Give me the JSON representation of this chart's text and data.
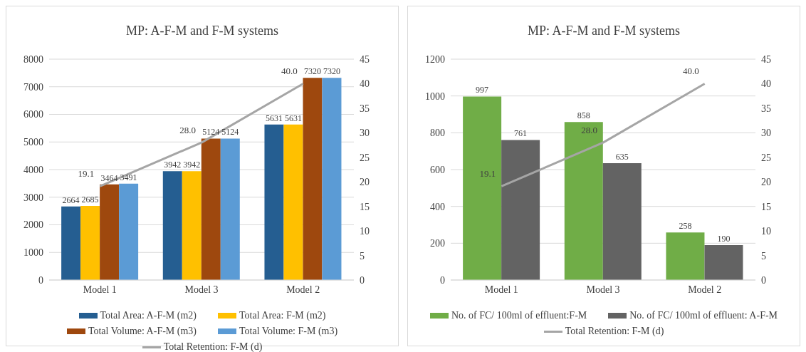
{
  "chart_data": [
    {
      "type": "bar",
      "title": "MP: A-F-M and F-M systems",
      "categories": [
        "Model 1",
        "Model 3",
        "Model 2"
      ],
      "ylim": [
        0,
        8000
      ],
      "yticks": [
        0,
        1000,
        2000,
        3000,
        4000,
        5000,
        6000,
        7000,
        8000
      ],
      "y2lim": [
        0,
        45
      ],
      "y2ticks": [
        0,
        5,
        10,
        15,
        20,
        25,
        30,
        35,
        40,
        45
      ],
      "grid": "y",
      "legend": "bottom",
      "data_labels": true,
      "series": [
        {
          "name": "Total Area: A-F-M (m2)",
          "color": "#255e91",
          "values": [
            2664,
            3942,
            5631
          ]
        },
        {
          "name": "Total Area: F-M (m2)",
          "color": "#ffc000",
          "values": [
            2685,
            3942,
            5631
          ]
        },
        {
          "name": "Total Volume: A-F-M (m3)",
          "color": "#9e480e",
          "values": [
            3464,
            5124,
            7320
          ]
        },
        {
          "name": "Total Volume: F-M (m3)",
          "color": "#5b9bd5",
          "values": [
            3491,
            5124,
            7320
          ]
        },
        {
          "name": "Total Retention: F-M (d)",
          "type": "line",
          "axis": "y2",
          "color": "#a5a5a5",
          "values": [
            19.1,
            28.0,
            40.0
          ],
          "value_labels": [
            "19.1",
            "28.0",
            "40.0"
          ],
          "marker": "none"
        }
      ]
    },
    {
      "type": "bar",
      "title": "MP: A-F-M and F-M systems",
      "categories": [
        "Model 1",
        "Model 3",
        "Model 2"
      ],
      "ylim": [
        0,
        1200
      ],
      "yticks": [
        0,
        200,
        400,
        600,
        800,
        1000,
        1200
      ],
      "y2lim": [
        0,
        45
      ],
      "y2ticks": [
        0,
        5,
        10,
        15,
        20,
        25,
        30,
        35,
        40,
        45
      ],
      "grid": "y",
      "legend": "bottom",
      "data_labels": true,
      "series": [
        {
          "name": "No. of FC/ 100ml  of effluent:F-M",
          "color": "#70ad47",
          "values": [
            997,
            858,
            258
          ]
        },
        {
          "name": "No. of FC/ 100ml  of effluent: A-F-M",
          "color": "#636363",
          "values": [
            761,
            635,
            190
          ]
        },
        {
          "name": "Total Retention: F-M (d)",
          "type": "line",
          "axis": "y2",
          "color": "#a5a5a5",
          "values": [
            19.1,
            28.0,
            40.0
          ],
          "value_labels": [
            "19.1",
            "28.0",
            "40.0"
          ],
          "marker": "none"
        }
      ]
    }
  ]
}
